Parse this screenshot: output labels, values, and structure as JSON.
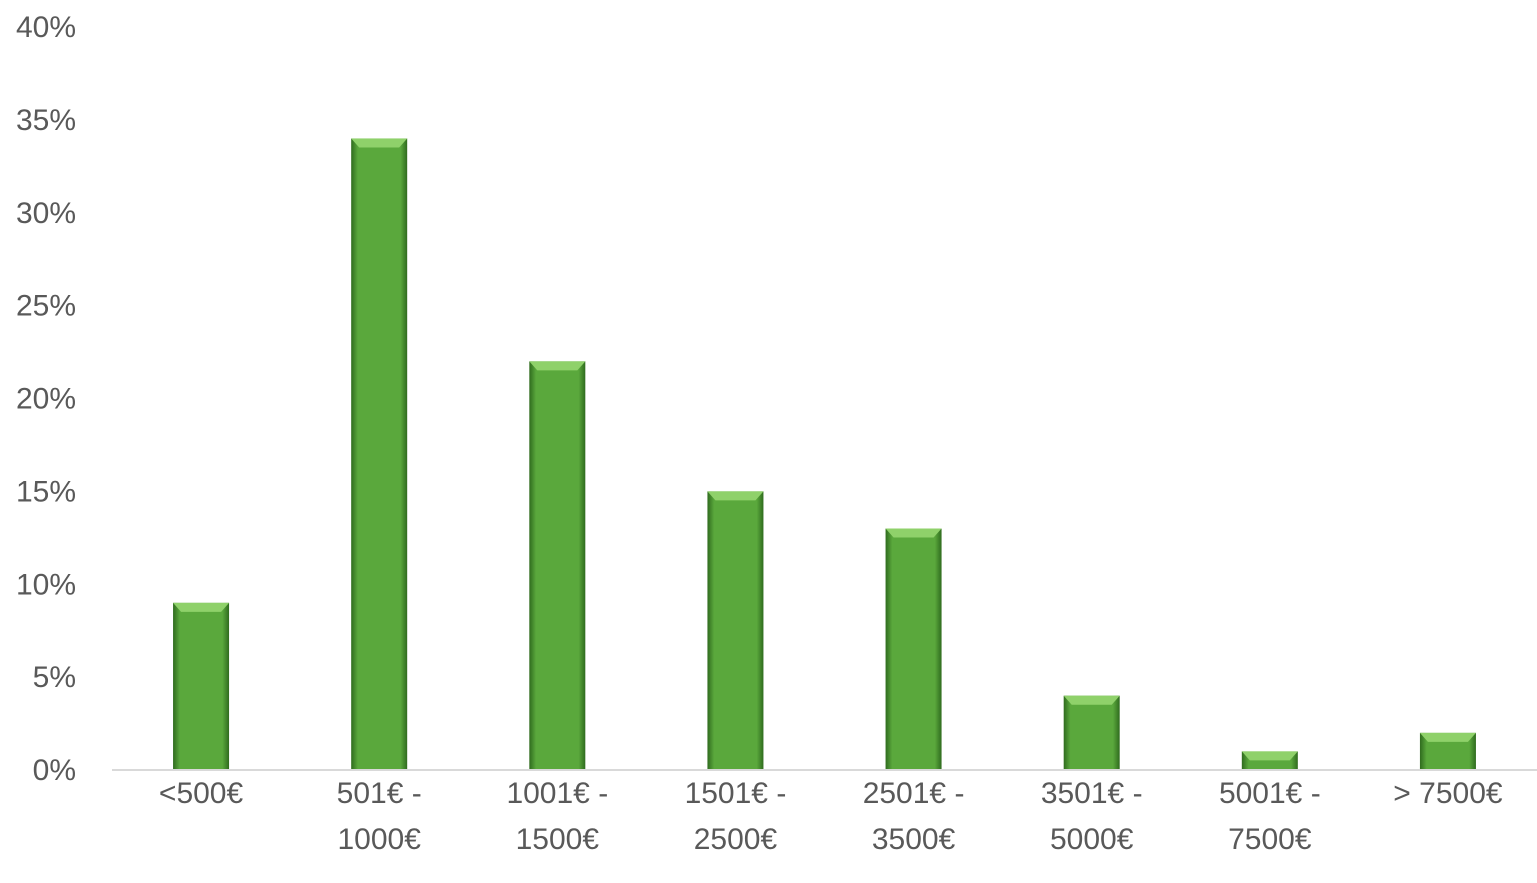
{
  "chart_data": {
    "type": "bar",
    "title": "",
    "xlabel": "",
    "ylabel": "",
    "categories": [
      [
        "<500€"
      ],
      [
        "501€ -",
        "1000€"
      ],
      [
        "1001€ -",
        "1500€"
      ],
      [
        "1501€ -",
        "2500€"
      ],
      [
        "2501€ -",
        "3500€"
      ],
      [
        "3501€ -",
        "5000€"
      ],
      [
        "5001€ -",
        "7500€"
      ],
      [
        "> 7500€"
      ]
    ],
    "values": [
      9,
      34,
      22,
      15,
      13,
      4,
      1,
      2
    ],
    "ylim": [
      0,
      40
    ],
    "yticks": [
      "0%",
      "5%",
      "10%",
      "15%",
      "20%",
      "25%",
      "30%",
      "35%",
      "40%"
    ],
    "grid": false,
    "legend": "none",
    "colors": {
      "bar": "#5aa83c",
      "bar_dark": "#2f6b1e",
      "bar_light": "#8fd16a",
      "axis": "#d9d9d9",
      "text": "#595959"
    }
  }
}
